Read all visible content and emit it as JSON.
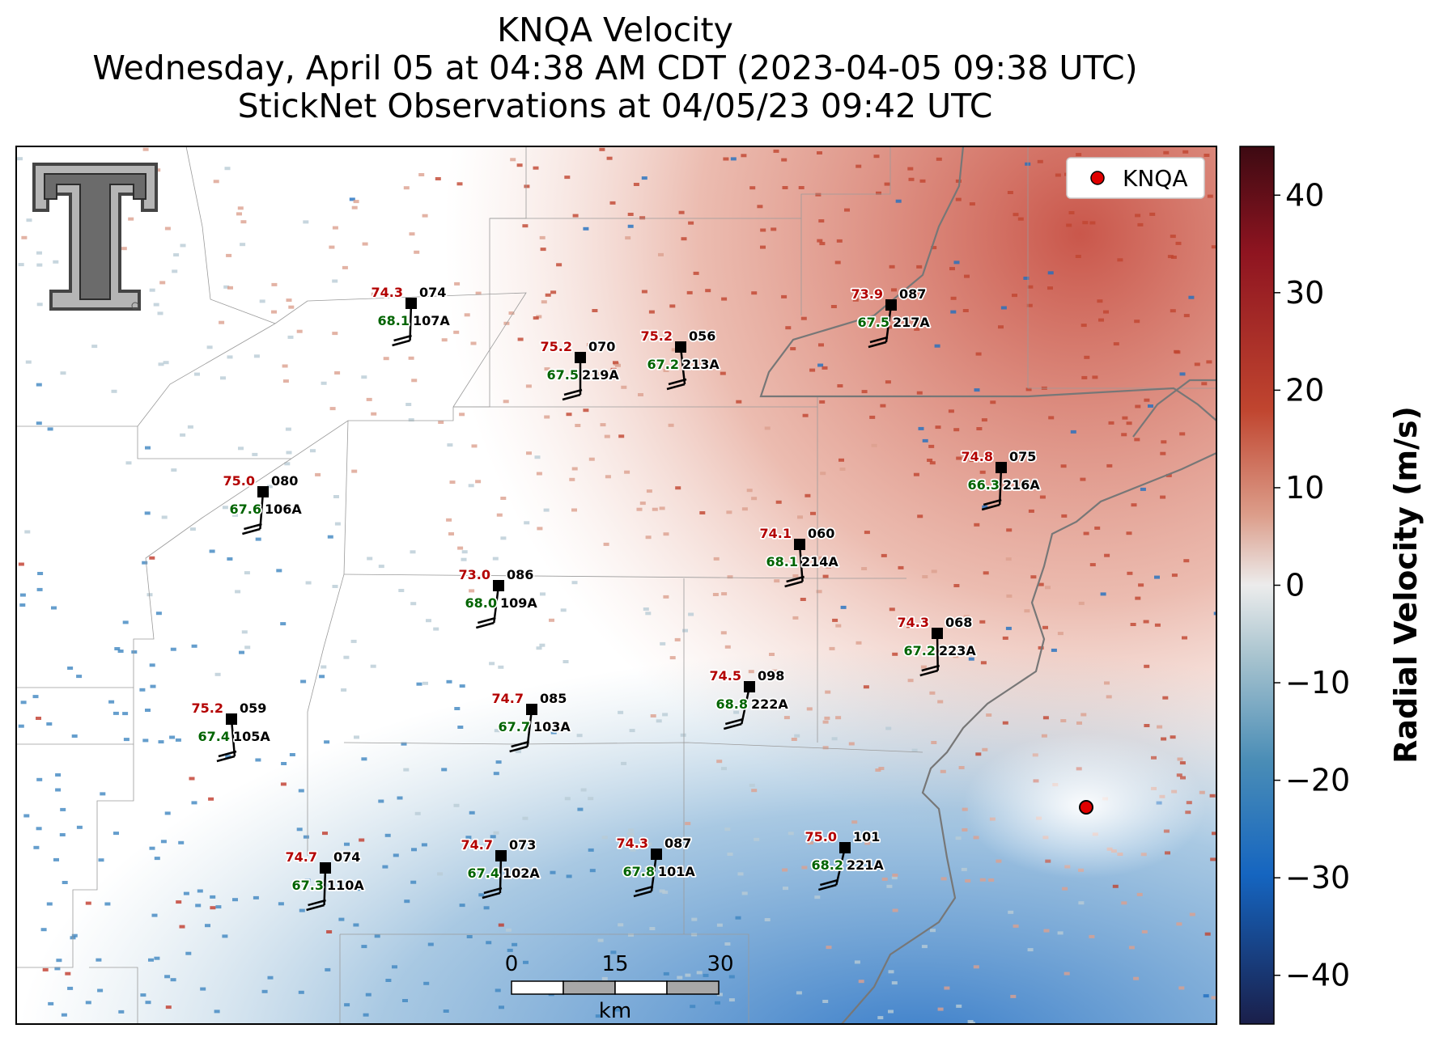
{
  "titles": {
    "line1": "KNQA Velocity",
    "line2": "Wednesday, April 05 at 04:38 AM CDT (2023-04-05 09:38 UTC)",
    "line3": "StickNet Observations at 04/05/23 09:42 UTC"
  },
  "legend": {
    "label": "KNQA",
    "marker_color": "#e00000"
  },
  "colorbar": {
    "label": "Radial Velocity (m/s)",
    "ticks": [
      "40",
      "30",
      "20",
      "10",
      "0",
      "−10",
      "−20",
      "−30",
      "−40"
    ],
    "range": [
      -45,
      45
    ],
    "colors": [
      "#f7f7f7",
      "#c0392b",
      "#5a0a14",
      "#1565c0",
      "#1a1f4a"
    ]
  },
  "scalebar": {
    "ticks": [
      "0",
      "15",
      "30"
    ],
    "unit": "km"
  },
  "logo": {
    "name": "texas-tech-double-t-logo"
  },
  "stations": [
    {
      "id": "107A",
      "temp": "74.3",
      "dew": "68.1",
      "dir": "074"
    },
    {
      "id": "219A",
      "temp": "75.2",
      "dew": "67.5",
      "dir": "070"
    },
    {
      "id": "213A",
      "temp": "75.2",
      "dew": "67.2",
      "dir": "056"
    },
    {
      "id": "217A",
      "temp": "73.9",
      "dew": "67.5",
      "dir": "087"
    },
    {
      "id": "216A",
      "temp": "74.8",
      "dew": "66.3",
      "dir": "075"
    },
    {
      "id": "106A",
      "temp": "75.0",
      "dew": "67.6",
      "dir": "080"
    },
    {
      "id": "214A",
      "temp": "74.1",
      "dew": "68.1",
      "dir": "060"
    },
    {
      "id": "109A",
      "temp": "73.0",
      "dew": "68.0",
      "dir": "086"
    },
    {
      "id": "223A",
      "temp": "74.3",
      "dew": "67.2",
      "dir": "068"
    },
    {
      "id": "222A",
      "temp": "74.5",
      "dew": "68.8",
      "dir": "098"
    },
    {
      "id": "103A",
      "temp": "74.7",
      "dew": "67.7",
      "dir": "085"
    },
    {
      "id": "105A",
      "temp": "75.2",
      "dew": "67.4",
      "dir": "059"
    },
    {
      "id": "101A",
      "temp": "74.3",
      "dew": "67.8",
      "dir": "087"
    },
    {
      "id": "221A",
      "temp": "75.0",
      "dew": "68.2",
      "dir": "101"
    },
    {
      "id": "102A",
      "temp": "74.7",
      "dew": "67.4",
      "dir": "073"
    },
    {
      "id": "110A",
      "temp": "74.7",
      "dew": "67.3",
      "dir": "074"
    }
  ]
}
